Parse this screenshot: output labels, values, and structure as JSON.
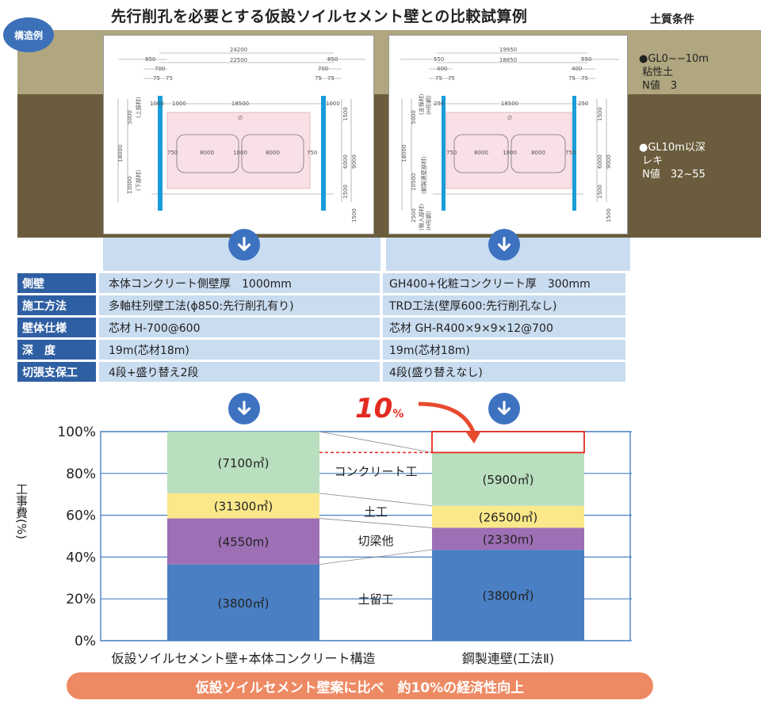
{
  "header": {
    "title": "先行削孔を必要とする仮設ソイルセメント壁との比較試算例",
    "badge": "構造例",
    "soil_title": "土質条件"
  },
  "soil": {
    "layer1": "●GL0~−10m\n 粘性土\n N値　3",
    "layer2": "●GL10m以深\n レキ\n N値　32~55"
  },
  "drawing_left": {
    "dims": [
      "24200",
      "22500",
      "850",
      "850",
      "700",
      "700",
      "75",
      "75",
      "75",
      "75",
      "1000",
      "1000",
      "18500",
      "1000",
      "750",
      "8000",
      "1000",
      "8000",
      "750",
      "5000",
      "13000",
      "18000",
      "1500",
      "6000",
      "9000",
      "1500",
      "1500"
    ],
    "labels": [
      "(上部材)",
      "(下部材)",
      "∅"
    ]
  },
  "drawing_right": {
    "dims": [
      "19950",
      "18850",
      "550",
      "550",
      "400",
      "400",
      "75",
      "75",
      "75",
      "75",
      "250",
      "18500",
      "250",
      "750",
      "8000",
      "1000",
      "8000",
      "750",
      "5000",
      "10500",
      "18000",
      "2500",
      "1500",
      "6000",
      "9000",
      "1500",
      "1500"
    ],
    "labels": [
      "(支保材)",
      "(H形鋼)",
      "(鋼製連壁部材)",
      "(根入部材)",
      "(H形鋼)",
      "∅"
    ]
  },
  "spec_table": {
    "rows": [
      {
        "label": "側壁",
        "left": "本体コンクリート側壁厚　1000mm",
        "right": "GH400+化粧コンクリート厚　300mm"
      },
      {
        "label": "施工方法",
        "left": "多軸柱列壁工法(ϕ850:先行削孔有り)",
        "right": "TRD工法(壁厚600:先行削孔なし)"
      },
      {
        "label": "壁体仕様",
        "left": "芯材 H-700@600",
        "right": "芯材 GH-R400×9×9×12@700"
      },
      {
        "label": "深　度",
        "left": "19m(芯材18m)",
        "right": "19m(芯材18m)"
      },
      {
        "label": "切張支保工",
        "left": "4段+盛り替え2段",
        "right": "4段(盛り替えなし)"
      }
    ]
  },
  "reduction": {
    "number": "10",
    "unit": "%"
  },
  "chart_data": {
    "type": "bar",
    "stacked": true,
    "ylabel": "工事費(%)",
    "ylim": [
      0,
      100
    ],
    "yticks": [
      "0%",
      "20%",
      "40%",
      "60%",
      "80%",
      "100%"
    ],
    "grid": true,
    "categories": [
      "仮設ソイルセメント壁+本体コンクリート構造",
      "鋼製連壁(工法Ⅱ)"
    ],
    "series": [
      {
        "name": "土留工",
        "color": "#4a7fc4",
        "values": [
          36.5,
          43.5
        ],
        "labels": [
          "(3800㎡)",
          "(3800㎡)"
        ]
      },
      {
        "name": "切梁他",
        "color": "#9d6fb4",
        "values": [
          22,
          10.5
        ],
        "labels": [
          "(4550m)",
          "(2330m)"
        ]
      },
      {
        "name": "土工",
        "color": "#fbe88a",
        "values": [
          12,
          10.5
        ],
        "labels": [
          "(31300㎥)",
          "(26500㎥)"
        ]
      },
      {
        "name": "コンクリート工",
        "color": "#b9dfbe",
        "values": [
          29.5,
          25.5
        ],
        "labels": [
          "(7100㎥)",
          "(5900㎥)"
        ]
      }
    ],
    "reduction_percent": 10
  },
  "banner": "仮設ソイルセメント壁案に比べ　約10%の経済性向上"
}
